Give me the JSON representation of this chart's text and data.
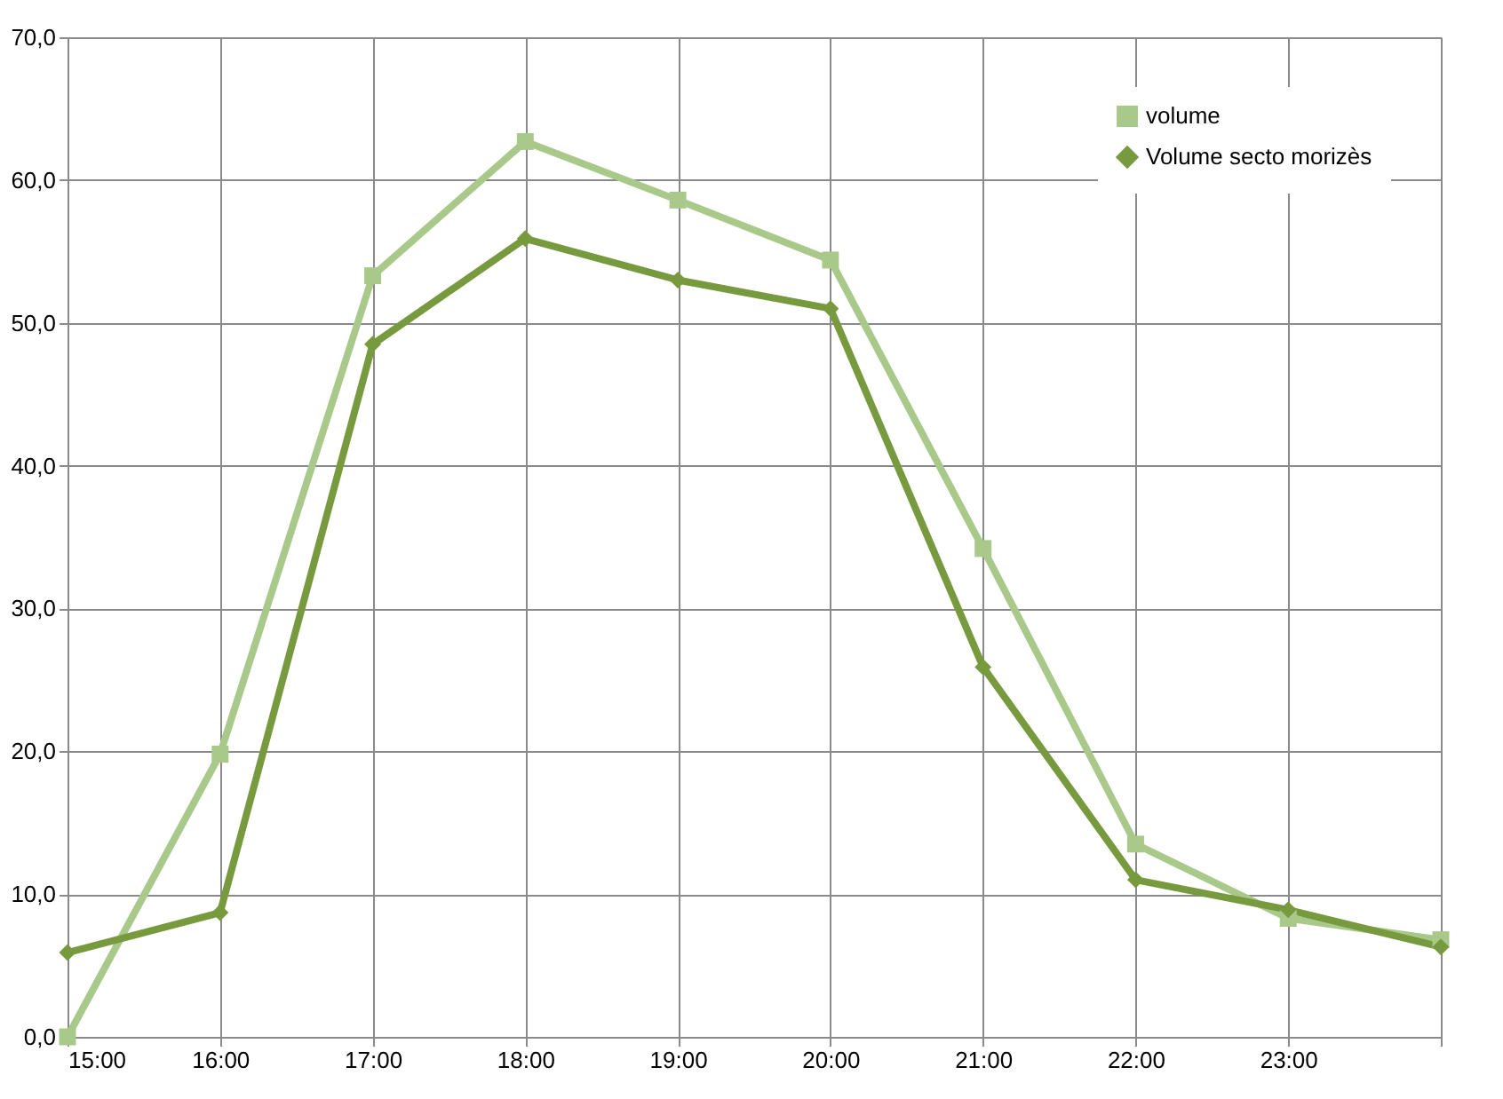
{
  "chart_data": {
    "type": "line",
    "x": [
      15,
      16,
      17,
      18,
      19,
      20,
      21,
      22,
      23,
      24
    ],
    "series": [
      {
        "name": "volume",
        "color": "#a9c98a",
        "marker": "square",
        "values": [
          0.0,
          19.8,
          53.3,
          62.7,
          58.6,
          54.4,
          34.2,
          13.5,
          8.3,
          6.8
        ]
      },
      {
        "name": "Volume secto morizès",
        "color": "#779a3e",
        "marker": "diamond",
        "values": [
          5.9,
          8.7,
          48.5,
          55.9,
          53.0,
          51.0,
          25.9,
          11.0,
          8.9,
          6.3
        ]
      }
    ],
    "xlim": [
      15,
      24
    ],
    "xticks": [
      {
        "value": 15,
        "label": "15:00"
      },
      {
        "value": 16,
        "label": "16:00"
      },
      {
        "value": 17,
        "label": "17:00"
      },
      {
        "value": 18,
        "label": "18:00"
      },
      {
        "value": 19,
        "label": "19:00"
      },
      {
        "value": 20,
        "label": "20:00"
      },
      {
        "value": 21,
        "label": "21:00"
      },
      {
        "value": 22,
        "label": "22:00"
      },
      {
        "value": 23,
        "label": "23:00"
      },
      {
        "value": 24,
        "label": null
      }
    ],
    "ylim": [
      0,
      70
    ],
    "yticks": [
      {
        "value": 0,
        "label": "0,0"
      },
      {
        "value": 10,
        "label": "10,0"
      },
      {
        "value": 20,
        "label": "20,0"
      },
      {
        "value": 30,
        "label": "30,0"
      },
      {
        "value": 40,
        "label": "40,0"
      },
      {
        "value": 50,
        "label": "50,0"
      },
      {
        "value": 60,
        "label": "60,0"
      },
      {
        "value": 70,
        "label": "70,0"
      }
    ],
    "grid": true,
    "legend": "top right",
    "line_style": "solid"
  }
}
